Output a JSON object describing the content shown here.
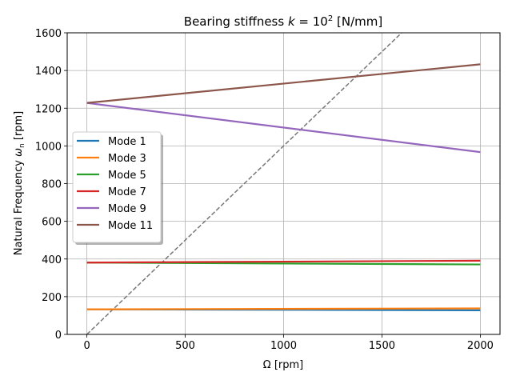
{
  "chart_data": {
    "type": "line",
    "title_main": "Bearing stiffness ",
    "title_math": "k",
    "title_eq": " = 10",
    "title_sup": "2",
    "title_unit": " [N/mm]",
    "xlabel": "Ω [rpm]",
    "ylabel_main": "Natural Frequency ",
    "ylabel_math": "ω",
    "ylabel_sub": "n",
    "ylabel_unit": " [rpm]",
    "xlim": [
      -100,
      2100
    ],
    "ylim": [
      0,
      1600
    ],
    "xticks": [
      0,
      500,
      1000,
      1500,
      2000
    ],
    "yticks": [
      0,
      200,
      400,
      600,
      800,
      1000,
      1200,
      1400,
      1600
    ],
    "grid": true,
    "legend_position": "center-left",
    "x": [
      0,
      2000
    ],
    "series": [
      {
        "name": "Mode 1",
        "color": "#1f77b4",
        "values": [
          133,
          128
        ]
      },
      {
        "name": "Mode 3",
        "color": "#ff7f0e",
        "values": [
          133,
          138
        ]
      },
      {
        "name": "Mode 5",
        "color": "#2ca02c",
        "values": [
          381,
          371
        ]
      },
      {
        "name": "Mode 7",
        "color": "#d62728",
        "values": [
          381,
          391
        ]
      },
      {
        "name": "Mode 9",
        "color": "#9467bd",
        "values": [
          1228,
          967
        ]
      },
      {
        "name": "Mode 11",
        "color": "#8c564b",
        "values": [
          1228,
          1433
        ]
      }
    ],
    "reference_line": {
      "style": "dashed",
      "color": "#777777",
      "x": [
        0,
        1600
      ],
      "y": [
        0,
        1600
      ]
    }
  }
}
